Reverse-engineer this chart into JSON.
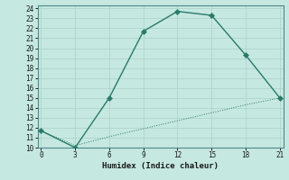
{
  "xlabel": "Humidex (Indice chaleur)",
  "bg_color": "#c5e8e0",
  "grid_color": "#b0d4cc",
  "line_color": "#2a7a6a",
  "x_upper": [
    0,
    3,
    6,
    9,
    12,
    15,
    18,
    21
  ],
  "y_upper": [
    11.7,
    10.0,
    15.0,
    21.7,
    23.7,
    23.3,
    19.3,
    15.0
  ],
  "x_lower": [
    0,
    3,
    6,
    9,
    12,
    15,
    18,
    21
  ],
  "y_lower": [
    11.7,
    10.2,
    11.1,
    11.9,
    12.7,
    13.5,
    14.3,
    15.0
  ],
  "xlim": [
    -0.3,
    21.3
  ],
  "ylim": [
    10,
    24.3
  ],
  "xticks": [
    0,
    3,
    6,
    9,
    12,
    15,
    18,
    21
  ],
  "yticks": [
    10,
    11,
    12,
    13,
    14,
    15,
    16,
    17,
    18,
    19,
    20,
    21,
    22,
    23,
    24
  ],
  "marker": "D",
  "marker_size": 3,
  "line_width": 1.0
}
